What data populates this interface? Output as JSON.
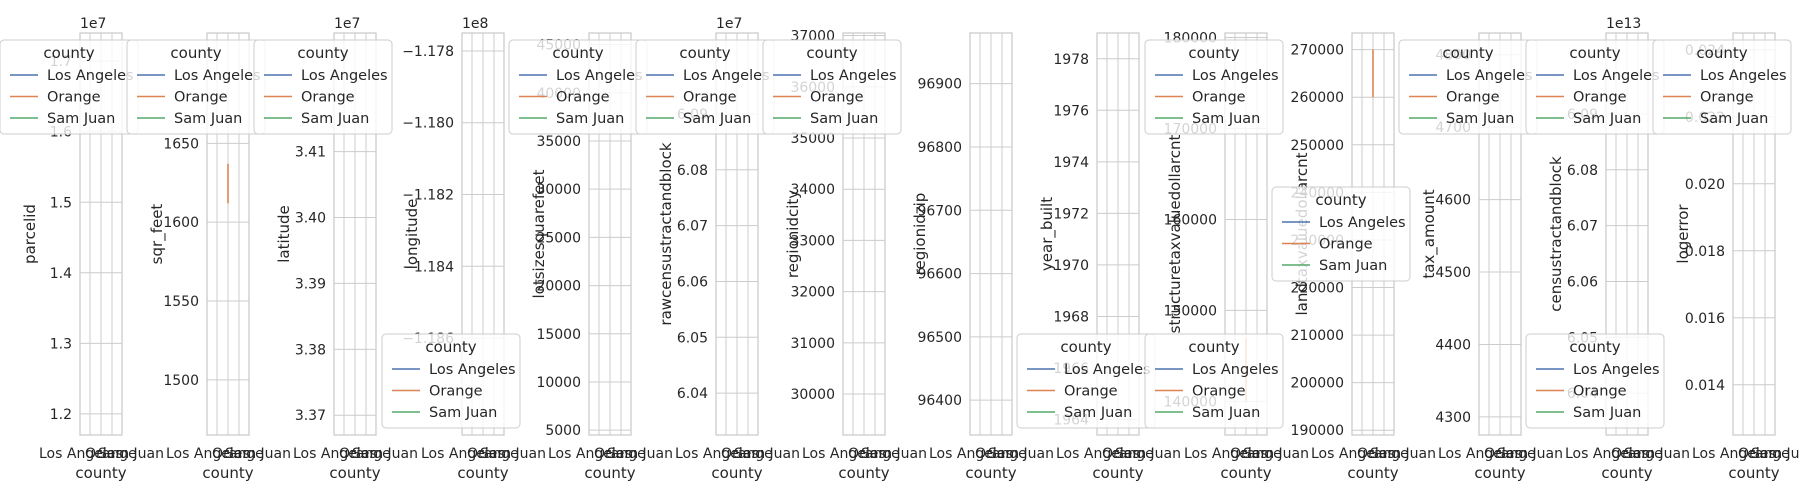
{
  "chart_data": {
    "type": "line",
    "x_label": "county",
    "categories": [
      "Los Angeles",
      "Orange",
      "Sam Juan"
    ],
    "legend": {
      "title": "county",
      "entries": [
        {
          "name": "Los Angeles",
          "color": "#4c72b0"
        },
        {
          "name": "Orange",
          "color": "#dd8452"
        },
        {
          "name": "Sam Juan",
          "color": "#55a868"
        }
      ]
    },
    "colors": {
      "Los Angeles": "#4c72b0",
      "Orange": "#dd8452",
      "Sam Juan": "#55a868"
    },
    "panels": [
      {
        "ylabel": "parcelid",
        "offset": "1e7",
        "ylim": [
          11.7,
          17.4
        ],
        "ticks": [
          {
            "v": 12,
            "t": "1.2"
          },
          {
            "v": 13,
            "t": "1.3"
          },
          {
            "v": 14,
            "t": "1.4"
          },
          {
            "v": 15,
            "t": "1.5"
          },
          {
            "v": 16,
            "t": "1.6"
          },
          {
            "v": 17,
            "t": "1.7"
          }
        ],
        "series": [],
        "legends": [
          "upper"
        ]
      },
      {
        "ylabel": "sqr_feet",
        "offset": "",
        "ylim": [
          1465,
          1720
        ],
        "ticks": [
          {
            "v": 1500,
            "t": "1500"
          },
          {
            "v": 1550,
            "t": "1550"
          },
          {
            "v": 1600,
            "t": "1600"
          },
          {
            "v": 1650,
            "t": "1650"
          }
        ],
        "series": [
          {
            "category": "Orange",
            "y": [
              1612,
              1637
            ]
          }
        ],
        "legends": [
          "upper"
        ]
      },
      {
        "ylabel": "latitude",
        "offset": "1e7",
        "ylim": [
          3.367,
          3.428
        ],
        "ticks": [
          {
            "v": 3.37,
            "t": "3.37"
          },
          {
            "v": 3.38,
            "t": "3.38"
          },
          {
            "v": 3.39,
            "t": "3.39"
          },
          {
            "v": 3.4,
            "t": "3.40"
          },
          {
            "v": 3.41,
            "t": "3.41"
          }
        ],
        "series": [],
        "legends": [
          "upper"
        ]
      },
      {
        "ylabel": "longitude",
        "offset": "1e8",
        "ylim": [
          -1.1887,
          -1.1775
        ],
        "ticks": [
          {
            "v": -1.178,
            "t": "−1.178"
          },
          {
            "v": -1.18,
            "t": "−1.180"
          },
          {
            "v": -1.182,
            "t": "−1.182"
          },
          {
            "v": -1.184,
            "t": "−1.184"
          },
          {
            "v": -1.186,
            "t": "−1.186"
          }
        ],
        "series": [],
        "legends": [
          "lower"
        ]
      },
      {
        "ylabel": "lotsizesquarefeet",
        "offset": "",
        "ylim": [
          4500,
          46200
        ],
        "ticks": [
          {
            "v": 5000,
            "t": "5000"
          },
          {
            "v": 10000,
            "t": "10000"
          },
          {
            "v": 15000,
            "t": "15000"
          },
          {
            "v": 20000,
            "t": "20000"
          },
          {
            "v": 25000,
            "t": "25000"
          },
          {
            "v": 30000,
            "t": "30000"
          },
          {
            "v": 35000,
            "t": "35000"
          },
          {
            "v": 40000,
            "t": "40000"
          },
          {
            "v": 45000,
            "t": "45000"
          }
        ],
        "series": [],
        "legends": [
          "upper"
        ]
      },
      {
        "ylabel": "rawcensustractandblock",
        "offset": "1e7",
        "ylim": [
          6.0325,
          6.1045
        ],
        "ticks": [
          {
            "v": 6.04,
            "t": "6.04"
          },
          {
            "v": 6.05,
            "t": "6.05"
          },
          {
            "v": 6.06,
            "t": "6.06"
          },
          {
            "v": 6.07,
            "t": "6.07"
          },
          {
            "v": 6.08,
            "t": "6.08"
          },
          {
            "v": 6.09,
            "t": "6.09"
          }
        ],
        "series": [],
        "legends": [
          "upper"
        ]
      },
      {
        "ylabel": "regionidcity",
        "offset": "",
        "ylim": [
          29200,
          37050
        ],
        "ticks": [
          {
            "v": 30000,
            "t": "30000"
          },
          {
            "v": 31000,
            "t": "31000"
          },
          {
            "v": 32000,
            "t": "32000"
          },
          {
            "v": 33000,
            "t": "33000"
          },
          {
            "v": 34000,
            "t": "34000"
          },
          {
            "v": 35000,
            "t": "35000"
          },
          {
            "v": 36000,
            "t": "36000"
          },
          {
            "v": 37000,
            "t": "37000"
          }
        ],
        "series": [],
        "legends": [
          "upper"
        ]
      },
      {
        "ylabel": "regionidzip",
        "offset": "",
        "ylim": [
          96345,
          96980
        ],
        "ticks": [
          {
            "v": 96400,
            "t": "96400"
          },
          {
            "v": 96500,
            "t": "96500"
          },
          {
            "v": 96600,
            "t": "96600"
          },
          {
            "v": 96700,
            "t": "96700"
          },
          {
            "v": 96800,
            "t": "96800"
          },
          {
            "v": 96900,
            "t": "96900"
          }
        ],
        "series": [],
        "legends": []
      },
      {
        "ylabel": "year_built",
        "offset": "",
        "ylim": [
          1963.4,
          1979.0
        ],
        "ticks": [
          {
            "v": 1964,
            "t": "1964"
          },
          {
            "v": 1966,
            "t": "1966"
          },
          {
            "v": 1968,
            "t": "1968"
          },
          {
            "v": 1970,
            "t": "1970"
          },
          {
            "v": 1972,
            "t": "1972"
          },
          {
            "v": 1974,
            "t": "1974"
          },
          {
            "v": 1976,
            "t": "1976"
          },
          {
            "v": 1978,
            "t": "1978"
          }
        ],
        "series": [],
        "legends": [
          "lower"
        ]
      },
      {
        "ylabel": "structuretaxvaluedollarcnt",
        "offset": "",
        "ylim": [
          136300,
          180500
        ],
        "ticks": [
          {
            "v": 140000,
            "t": "140000"
          },
          {
            "v": 150000,
            "t": "150000"
          },
          {
            "v": 160000,
            "t": "160000"
          },
          {
            "v": 170000,
            "t": "170000"
          },
          {
            "v": 180000,
            "t": "180000"
          }
        ],
        "series": [
          {
            "category": "Orange",
            "y": [
              140000,
              147000
            ]
          }
        ],
        "legends": [
          "upper",
          "lower"
        ]
      },
      {
        "ylabel": "landtaxvaluedollarcnt",
        "offset": "",
        "ylim": [
          189000,
          273500
        ],
        "ticks": [
          {
            "v": 190000,
            "t": "190000"
          },
          {
            "v": 200000,
            "t": "200000"
          },
          {
            "v": 210000,
            "t": "210000"
          },
          {
            "v": 220000,
            "t": "220000"
          },
          {
            "v": 230000,
            "t": "230000"
          },
          {
            "v": 240000,
            "t": "240000"
          },
          {
            "v": 250000,
            "t": "250000"
          },
          {
            "v": 260000,
            "t": "260000"
          },
          {
            "v": 270000,
            "t": "270000"
          }
        ],
        "series": [
          {
            "category": "Orange",
            "y": [
              260000,
              270000
            ]
          }
        ],
        "legends": [
          "middle"
        ]
      },
      {
        "ylabel": "tax_amount",
        "offset": "",
        "ylim": [
          4275,
          4830
        ],
        "ticks": [
          {
            "v": 4300,
            "t": "4300"
          },
          {
            "v": 4400,
            "t": "4400"
          },
          {
            "v": 4500,
            "t": "4500"
          },
          {
            "v": 4600,
            "t": "4600"
          },
          {
            "v": 4700,
            "t": "4700"
          },
          {
            "v": 4800,
            "t": "4800"
          }
        ],
        "series": [],
        "legends": [
          "upper"
        ]
      },
      {
        "ylabel": "censustractandblock",
        "offset": "1e13",
        "ylim": [
          6.0325,
          6.1045
        ],
        "ticks": [
          {
            "v": 6.04,
            "t": "6.04"
          },
          {
            "v": 6.05,
            "t": "6.05"
          },
          {
            "v": 6.06,
            "t": "6.06"
          },
          {
            "v": 6.07,
            "t": "6.07"
          },
          {
            "v": 6.08,
            "t": "6.08"
          },
          {
            "v": 6.09,
            "t": "6.09"
          }
        ],
        "series": [],
        "legends": [
          "upper",
          "lower"
        ]
      },
      {
        "ylabel": "logerror",
        "offset": "",
        "ylim": [
          0.0125,
          0.0245
        ],
        "ticks": [
          {
            "v": 0.014,
            "t": "0.014"
          },
          {
            "v": 0.016,
            "t": "0.016"
          },
          {
            "v": 0.018,
            "t": "0.018"
          },
          {
            "v": 0.02,
            "t": "0.020"
          },
          {
            "v": 0.022,
            "t": "0.022"
          },
          {
            "v": 0.024,
            "t": "0.024"
          }
        ],
        "series": [],
        "legends": [
          "upper"
        ]
      }
    ]
  }
}
